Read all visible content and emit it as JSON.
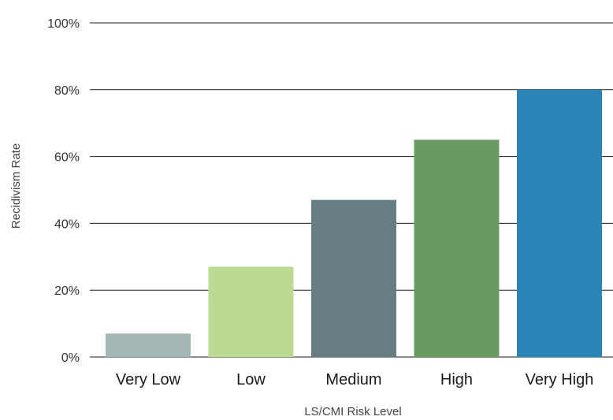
{
  "chart_data": {
    "type": "bar",
    "title": "",
    "xlabel": "LS/CMI Risk Level",
    "ylabel": "Recidivism Rate",
    "categories": [
      "Very Low",
      "Low",
      "Medium",
      "High",
      "Very High"
    ],
    "values": [
      7,
      27,
      47,
      65,
      80
    ],
    "colors": [
      "#a4b5b6",
      "#bcda92",
      "#667d82",
      "#689a62",
      "#2a85b8"
    ],
    "ylim": [
      0,
      100
    ],
    "yticks": [
      0,
      20,
      40,
      60,
      80,
      100
    ],
    "ytick_labels": [
      "0%",
      "20%",
      "40%",
      "60%",
      "80%",
      "100%"
    ],
    "grid": true,
    "legend": "none"
  }
}
